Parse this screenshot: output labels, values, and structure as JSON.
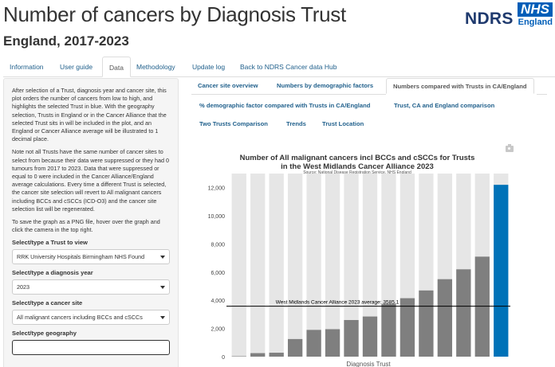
{
  "header": {
    "title": "Number of cancers by Diagnosis Trust",
    "subtitle": "England, 2017-2023",
    "ndrs_logo": "NDRS",
    "nhs_logo": "NHS",
    "nhs_region": "England"
  },
  "nav": {
    "tabs": [
      {
        "label": "Information"
      },
      {
        "label": "User guide"
      },
      {
        "label": "Data",
        "active": true
      },
      {
        "label": "Methodology"
      },
      {
        "label": "Update log"
      },
      {
        "label": "Back to NDRS Cancer data Hub"
      }
    ]
  },
  "sidebar": {
    "paragraphs": [
      "After selection of a Trust, diagnosis year and cancer site, this plot orders the number of cancers from low to high, and highlights the selected Trust in blue. With the geography selection, Trusts in England or in the Cancer Alliance that the selected Trust sits in will be included in the plot, and an England or Cancer Alliance average will be illustrated to 1 decimal place.",
      "Note not all Trusts have the same number of cancer sites to select from because their data were suppressed or they had 0 tumours from 2017 to 2023. Data that were suppressed or equal to 0 were included in the Cancer Alliance/England average calculations. Every time a different Trust is selected, the cancer site selection will revert to All malignant cancers including BCCs and cSCCs (ICD-O3) and the cancer site selection list will be regenerated.",
      "To save the graph as a PNG file, hover over the graph and click the camera in the top right."
    ],
    "trust_label": "Select/type a Trust to view",
    "trust_value": "RRK University Hospitals Birmingham NHS Found",
    "year_label": "Select/type a diagnosis year",
    "year_value": "2023",
    "site_label": "Select/type a cancer site",
    "site_value": "All malignant cancers including BCCs and cSCCs",
    "geo_label": "Select/type geography"
  },
  "subtabs": {
    "row1": [
      {
        "label": "Cancer site overview"
      },
      {
        "label": "Numbers by demographic factors"
      },
      {
        "label": "Numbers compared with Trusts in CA/England",
        "active": true
      }
    ],
    "row2": [
      {
        "label": "% demographic factor compared with Trusts in CA/England"
      },
      {
        "label": "Trust, CA and England comparison"
      }
    ],
    "row3": [
      {
        "label": "Two Trusts Comparison"
      },
      {
        "label": "Trends"
      },
      {
        "label": "Trust Location"
      }
    ]
  },
  "chart_data": {
    "type": "bar",
    "title_line1": "Number of All malignant cancers incl BCCs and cSCCs for Trusts",
    "title_line2": "in the West Midlands Cancer Alliance 2023",
    "source": "Source: National Disease Registration Service, NHS England",
    "xlabel": "Diagnosis Trust",
    "ylim": [
      0,
      13000
    ],
    "yticks": [
      0,
      2000,
      4000,
      6000,
      8000,
      10000,
      12000
    ],
    "ytick_labels": [
      "0",
      "2,000",
      "4,000",
      "6,000",
      "8,000",
      "10,000",
      "12,000"
    ],
    "values": [
      30,
      250,
      280,
      1250,
      1900,
      1950,
      2600,
      2850,
      3750,
      4150,
      4700,
      5500,
      6200,
      7100,
      12200
    ],
    "highlight_index": 14,
    "average": 3585.1,
    "average_label": "West Midlands Cancer Alliance 2023 average: 3585.1",
    "colors": {
      "bar": "#7f7f7f",
      "background_bar": "#e6e6e6",
      "highlight": "#0072b8",
      "average_line": "#000000"
    }
  }
}
